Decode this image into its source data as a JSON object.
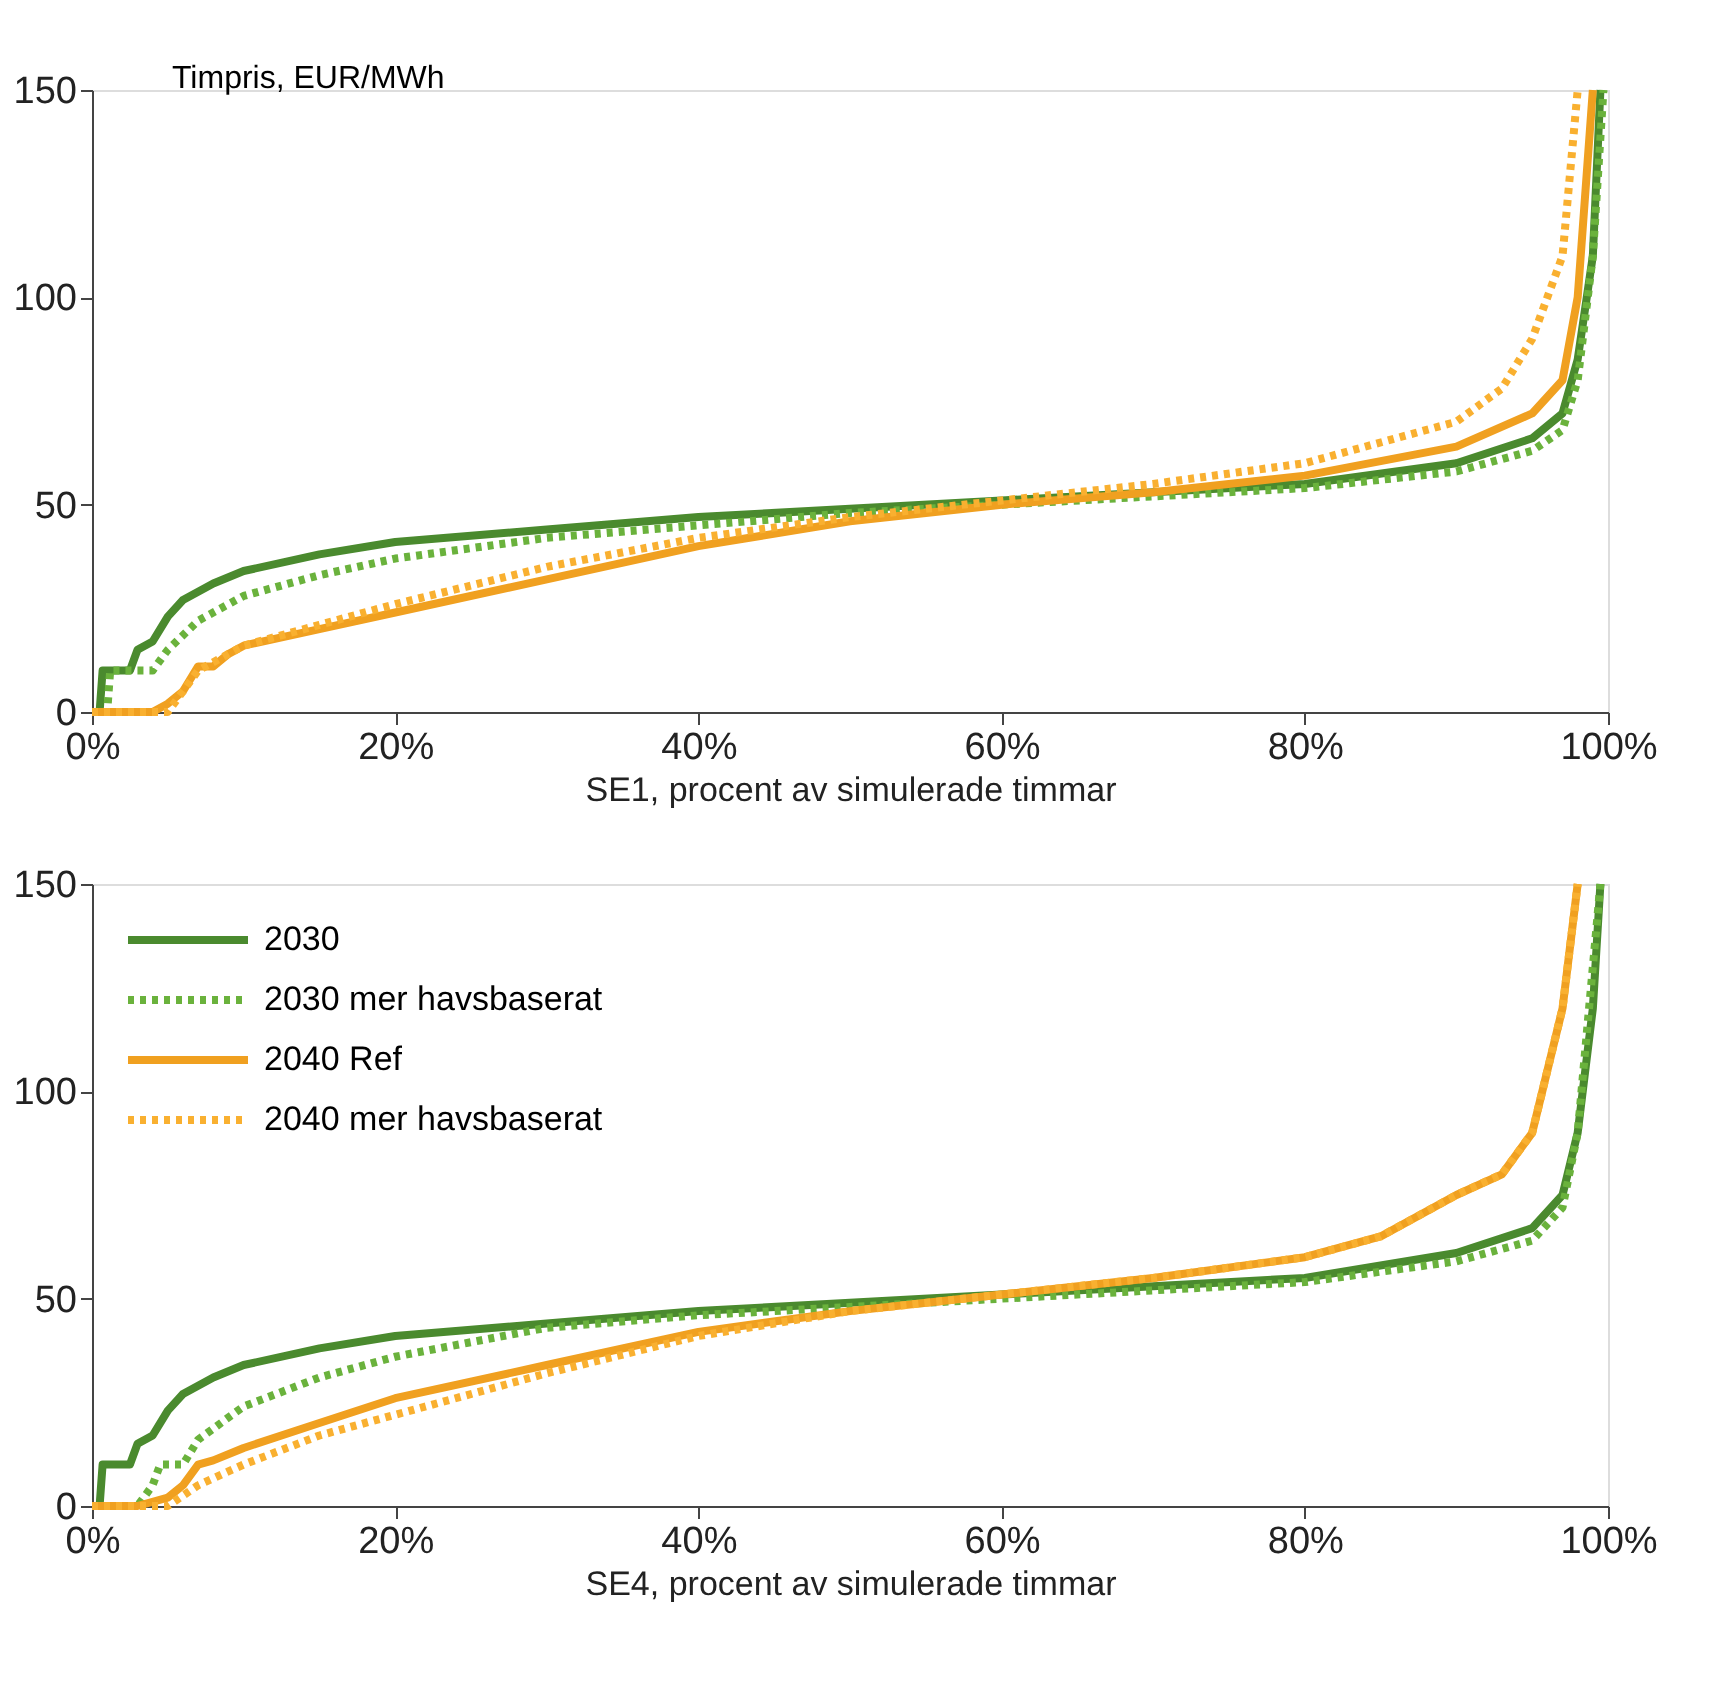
{
  "chart_data": [
    {
      "type": "line",
      "ylabel": "Timpris, EUR/MWh",
      "xlabel": "SE1, procent av simulerade timmar",
      "xlim": [
        0,
        100
      ],
      "ylim": [
        0,
        150
      ],
      "xticks": [
        {
          "value": 0,
          "label": "0%"
        },
        {
          "value": 20,
          "label": "20%"
        },
        {
          "value": 40,
          "label": "40%"
        },
        {
          "value": 60,
          "label": "60%"
        },
        {
          "value": 80,
          "label": "80%"
        },
        {
          "value": 100,
          "label": "100%"
        }
      ],
      "yticks": [
        0,
        50,
        100,
        150
      ],
      "grid": false,
      "legend": false,
      "series": [
        {
          "color": "#4a8a2e",
          "line_style": "solid",
          "x": [
            0,
            0.5,
            0.7,
            2.5,
            3,
            4,
            5,
            6,
            8,
            10,
            15,
            20,
            30,
            40,
            50,
            60,
            70,
            80,
            90,
            95,
            97,
            98,
            99,
            99.5
          ],
          "values": [
            0,
            0,
            10,
            10,
            15,
            17,
            23,
            27,
            31,
            34,
            38,
            41,
            44,
            47,
            49,
            51,
            53,
            55,
            60,
            66,
            72,
            85,
            110,
            150
          ]
        },
        {
          "color": "#6ab23c",
          "line_style": "dotted",
          "x": [
            0,
            1,
            1.2,
            4,
            5,
            7,
            10,
            15,
            20,
            30,
            40,
            50,
            60,
            70,
            80,
            90,
            95,
            97,
            98,
            99,
            99.7
          ],
          "values": [
            0,
            0,
            10,
            10,
            15,
            22,
            28,
            33,
            37,
            42,
            45,
            48,
            50,
            52,
            54,
            58,
            63,
            68,
            80,
            110,
            150
          ]
        },
        {
          "color": "#f0a020",
          "line_style": "solid",
          "x": [
            0,
            4,
            5,
            6,
            7,
            8,
            9,
            10,
            15,
            20,
            30,
            40,
            50,
            60,
            70,
            80,
            90,
            95,
            97,
            98,
            99
          ],
          "values": [
            0,
            0,
            2,
            5,
            11,
            11,
            14,
            16,
            20,
            24,
            32,
            40,
            46,
            50,
            53,
            57,
            64,
            72,
            80,
            100,
            150
          ]
        },
        {
          "color": "#f9b030",
          "line_style": "dotted",
          "x": [
            0,
            5,
            6,
            7,
            10,
            15,
            20,
            30,
            40,
            50,
            60,
            70,
            80,
            90,
            93,
            95,
            97,
            98
          ],
          "values": [
            0,
            0,
            5,
            10,
            16,
            21,
            26,
            35,
            42,
            47,
            51,
            55,
            60,
            70,
            78,
            90,
            110,
            150
          ]
        }
      ]
    },
    {
      "type": "line",
      "xlabel": "SE4, procent av simulerade timmar",
      "xlim": [
        0,
        100
      ],
      "ylim": [
        0,
        150
      ],
      "xticks": [
        {
          "value": 0,
          "label": "0%"
        },
        {
          "value": 20,
          "label": "20%"
        },
        {
          "value": 40,
          "label": "40%"
        },
        {
          "value": 60,
          "label": "60%"
        },
        {
          "value": 80,
          "label": "80%"
        },
        {
          "value": 100,
          "label": "100%"
        }
      ],
      "yticks": [
        0,
        50,
        100,
        150
      ],
      "grid": false,
      "legend": "top left",
      "series": [
        {
          "name": "2030",
          "color": "#4a8a2e",
          "line_style": "solid",
          "x": [
            0,
            0.5,
            0.7,
            2.5,
            3,
            4,
            5,
            6,
            8,
            10,
            15,
            20,
            30,
            40,
            50,
            60,
            70,
            80,
            90,
            95,
            97,
            98,
            99,
            99.5
          ],
          "values": [
            0,
            0,
            10,
            10,
            15,
            17,
            23,
            27,
            31,
            34,
            38,
            41,
            44,
            47,
            49,
            51,
            53,
            55,
            61,
            67,
            75,
            90,
            120,
            150
          ]
        },
        {
          "name": "2030 mer havsbaserat",
          "color": "#6ab23c",
          "line_style": "dotted",
          "x": [
            0,
            3,
            4,
            4.5,
            6,
            7,
            10,
            15,
            20,
            30,
            40,
            50,
            60,
            70,
            80,
            90,
            95,
            97,
            98,
            99,
            99.5
          ],
          "values": [
            0,
            0,
            5,
            10,
            10,
            16,
            24,
            31,
            36,
            43,
            46,
            48,
            50,
            52,
            54,
            59,
            64,
            72,
            90,
            130,
            150
          ]
        },
        {
          "name": "2040 Ref",
          "color": "#f0a020",
          "line_style": "solid",
          "x": [
            0,
            3,
            5,
            6,
            7,
            8,
            10,
            15,
            20,
            30,
            40,
            50,
            60,
            70,
            80,
            85,
            90,
            93,
            95,
            96,
            97,
            98
          ],
          "values": [
            0,
            0,
            2,
            5,
            10,
            11,
            14,
            20,
            26,
            34,
            42,
            47,
            51,
            55,
            60,
            65,
            75,
            80,
            90,
            105,
            120,
            150
          ]
        },
        {
          "name": "2040 mer havsbaserat",
          "color": "#f9b030",
          "line_style": "dotted",
          "x": [
            0,
            5,
            7,
            10,
            15,
            20,
            30,
            40,
            50,
            60,
            70,
            80,
            85,
            90,
            93,
            95,
            96,
            97,
            98
          ],
          "values": [
            0,
            0,
            5,
            10,
            17,
            22,
            32,
            41,
            47,
            51,
            55,
            60,
            65,
            75,
            80,
            90,
            105,
            120,
            150
          ]
        }
      ]
    }
  ]
}
